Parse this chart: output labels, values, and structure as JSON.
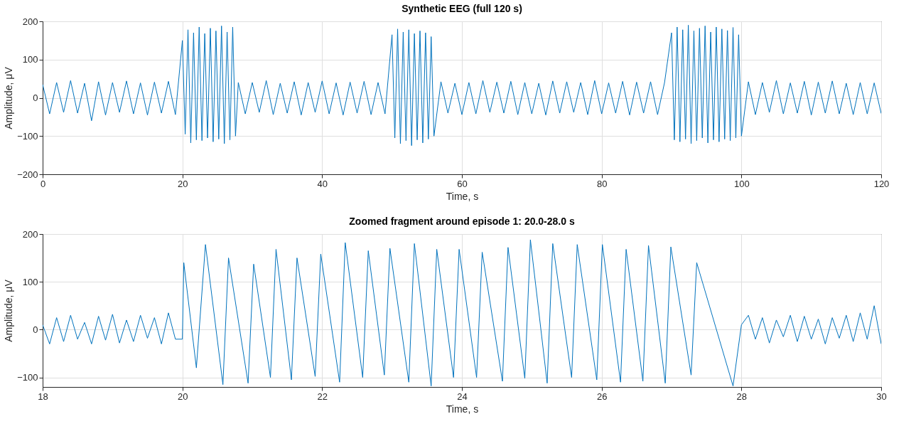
{
  "chart_data": [
    {
      "type": "line",
      "title": "Synthetic EEG (full 120 s)",
      "xlabel": "Time, s",
      "ylabel": "Amplitude, μV",
      "xlim": [
        0,
        120
      ],
      "xticks": [
        0,
        20,
        40,
        60,
        80,
        100,
        120
      ],
      "ylim": [
        -200,
        200
      ],
      "yticks": [
        -200,
        -100,
        0,
        100,
        200
      ],
      "grid": true,
      "line_style": "solid",
      "series": [
        {
          "color": "#0072bd",
          "x": [
            0,
            1,
            2,
            3,
            4,
            5,
            6,
            7,
            8,
            9,
            10,
            11,
            12,
            13,
            14,
            15,
            16,
            17,
            18,
            19,
            20,
            20.4,
            20.8,
            21.2,
            21.6,
            22,
            22.4,
            22.8,
            23.2,
            23.6,
            24,
            24.4,
            24.8,
            25.2,
            25.6,
            26,
            26.4,
            26.8,
            27.2,
            27.6,
            28,
            29,
            30,
            31,
            32,
            33,
            34,
            35,
            36,
            37,
            38,
            39,
            40,
            41,
            42,
            43,
            44,
            45,
            46,
            47,
            48,
            49,
            50,
            50.4,
            50.8,
            51.2,
            51.6,
            52,
            52.4,
            52.8,
            53.2,
            53.6,
            54,
            54.4,
            54.8,
            55.2,
            55.6,
            56,
            57,
            58,
            59,
            60,
            61,
            62,
            63,
            64,
            65,
            66,
            67,
            68,
            69,
            70,
            71,
            72,
            73,
            74,
            75,
            76,
            77,
            78,
            79,
            80,
            81,
            82,
            83,
            84,
            85,
            86,
            87,
            88,
            89,
            90,
            90.4,
            90.8,
            91.2,
            91.6,
            92,
            92.4,
            92.8,
            93.2,
            93.6,
            94,
            94.4,
            94.8,
            95.2,
            95.6,
            96,
            96.4,
            96.8,
            97.2,
            97.6,
            98,
            98.4,
            98.8,
            99.2,
            99.6,
            100,
            101,
            102,
            103,
            104,
            105,
            106,
            107,
            108,
            109,
            110,
            111,
            112,
            113,
            114,
            115,
            116,
            117,
            118,
            119,
            120
          ],
          "values": [
            35,
            -42,
            40,
            -38,
            45,
            -40,
            38,
            -60,
            42,
            -45,
            40,
            -38,
            44,
            -42,
            39,
            -45,
            41,
            -40,
            43,
            -44,
            150,
            -95,
            178,
            -118,
            170,
            -110,
            185,
            -112,
            168,
            -105,
            182,
            -115,
            175,
            -108,
            188,
            -120,
            172,
            -110,
            185,
            -100,
            40,
            -42,
            40,
            -38,
            45,
            -44,
            38,
            -40,
            42,
            -45,
            40,
            -38,
            44,
            -42,
            39,
            -45,
            41,
            -40,
            43,
            -44,
            40,
            -42,
            165,
            -105,
            180,
            -120,
            172,
            -112,
            178,
            -125,
            168,
            -110,
            175,
            -118,
            170,
            -108,
            160,
            -100,
            42,
            -40,
            38,
            -44,
            40,
            -42,
            45,
            -38,
            41,
            -40,
            43,
            -44,
            40,
            -42,
            38,
            -45,
            44,
            -40,
            42,
            -38,
            40,
            -44,
            45,
            -42,
            39,
            -40,
            43,
            -45,
            41,
            -40,
            42,
            -44,
            40,
            170,
            -110,
            185,
            -115,
            178,
            -108,
            190,
            -120,
            175,
            -112,
            182,
            -105,
            188,
            -118,
            172,
            -110,
            185,
            -115,
            180,
            -108,
            176,
            -112,
            184,
            -105,
            165,
            -100,
            42,
            -44,
            40,
            -38,
            45,
            -42,
            39,
            -40,
            43,
            -45,
            41,
            -40,
            44,
            -42,
            38,
            -44,
            40,
            -42,
            39,
            -41
          ]
        }
      ]
    },
    {
      "type": "line",
      "title": "Zoomed fragment around episode 1: 20.0-28.0 s",
      "xlabel": "Time, s",
      "ylabel": "Amplitude, μV",
      "xlim": [
        18,
        30
      ],
      "xticks": [
        18,
        20,
        22,
        24,
        26,
        28,
        30
      ],
      "ylim": [
        -120,
        200
      ],
      "yticks": [
        -100,
        0,
        100,
        200
      ],
      "grid": true,
      "line_style": "solid",
      "series": [
        {
          "color": "#0072bd",
          "x": [
            18,
            18.1,
            18.2,
            18.3,
            18.4,
            18.5,
            18.6,
            18.7,
            18.8,
            18.9,
            19,
            19.1,
            19.2,
            19.3,
            19.4,
            19.5,
            19.6,
            19.7,
            19.8,
            19.9,
            20,
            20.02,
            20.2,
            20.33,
            20.58,
            20.66,
            20.94,
            21.02,
            21.26,
            21.34,
            21.56,
            21.64,
            21.9,
            21.98,
            22.25,
            22.33,
            22.58,
            22.66,
            22.89,
            22.97,
            23.24,
            23.32,
            23.56,
            23.64,
            23.88,
            23.96,
            24.21,
            24.29,
            24.58,
            24.66,
            24.9,
            24.98,
            25.22,
            25.3,
            25.57,
            25.65,
            25.93,
            26.01,
            26.27,
            26.35,
            26.59,
            26.67,
            26.91,
            26.99,
            27.28,
            27.36,
            27.88,
            28,
            28.1,
            28.2,
            28.3,
            28.4,
            28.5,
            28.6,
            28.7,
            28.8,
            28.9,
            29,
            29.1,
            29.2,
            29.3,
            29.4,
            29.5,
            29.6,
            29.7,
            29.8,
            29.9,
            30
          ],
          "values": [
            10,
            -30,
            25,
            -25,
            30,
            -20,
            15,
            -30,
            28,
            -22,
            32,
            -28,
            20,
            -25,
            30,
            -18,
            25,
            -30,
            35,
            -20,
            -20,
            140,
            -80,
            178,
            -115,
            150,
            -112,
            137,
            -100,
            168,
            -105,
            150,
            -98,
            158,
            -110,
            182,
            -100,
            165,
            -95,
            170,
            -110,
            180,
            -118,
            168,
            -100,
            168,
            -100,
            162,
            -108,
            172,
            -102,
            188,
            -112,
            180,
            -100,
            178,
            -105,
            178,
            -110,
            168,
            -108,
            176,
            -112,
            173,
            -95,
            140,
            -118,
            10,
            30,
            -20,
            25,
            -28,
            20,
            -15,
            30,
            -25,
            28,
            -20,
            22,
            -30,
            25,
            -18,
            30,
            -25,
            35,
            -20,
            50,
            -30
          ]
        }
      ]
    }
  ]
}
